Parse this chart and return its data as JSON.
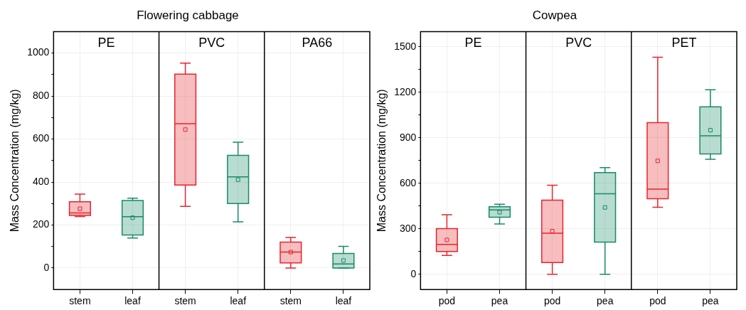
{
  "chart_data": [
    {
      "type": "box",
      "title": "Flowering cabbage",
      "ylabel": "Mass Concentration (mg/kg)",
      "categories": [
        "stem",
        "leaf",
        "stem",
        "leaf",
        "stem",
        "leaf"
      ],
      "annotations": [
        "PE",
        "PVC",
        "PA66"
      ],
      "colors": [
        "#e8242c",
        "#178a68",
        "#e8242c",
        "#178a68",
        "#e8242c",
        "#178a68"
      ],
      "boxes": [
        {
          "low": 240,
          "q1": 245,
          "median": 256,
          "q3": 308,
          "high": 344,
          "mean": 276
        },
        {
          "low": 140,
          "q1": 154,
          "median": 239,
          "q3": 314,
          "high": 325,
          "mean": 234
        },
        {
          "low": 287,
          "q1": 386,
          "median": 671,
          "q3": 902,
          "high": 953,
          "mean": 644
        },
        {
          "low": 215,
          "q1": 300,
          "median": 424,
          "q3": 524,
          "high": 585,
          "mean": 411
        },
        {
          "low": 0,
          "q1": 24,
          "median": 74,
          "q3": 121,
          "high": 142,
          "mean": 74
        },
        {
          "low": 0,
          "q1": 0,
          "median": 19,
          "q3": 68,
          "high": 101,
          "mean": 35
        }
      ],
      "ylim": [
        -100,
        1100
      ],
      "yticks": [
        0,
        {
          "value": 100,
          "label": null
        },
        200,
        {
          "value": 300,
          "label": null
        },
        400,
        {
          "value": 500,
          "label": null
        },
        600,
        {
          "value": 700,
          "label": null
        },
        800,
        {
          "value": 900,
          "label": null
        },
        1000
      ],
      "grid": true
    },
    {
      "type": "box",
      "title": "Cowpea",
      "ylabel": "Mass Concentration (mg/kg)",
      "categories": [
        "pod",
        "pea",
        "pod",
        "pea",
        "pod",
        "pea"
      ],
      "annotations": [
        "PE",
        "PVC",
        "PET"
      ],
      "colors": [
        "#e8242c",
        "#178a68",
        "#e8242c",
        "#178a68",
        "#e8242c",
        "#178a68"
      ],
      "boxes": [
        {
          "low": 125,
          "q1": 150,
          "median": 197,
          "q3": 301,
          "high": 393,
          "mean": 227
        },
        {
          "low": 332,
          "q1": 376,
          "median": 424,
          "q3": 446,
          "high": 462,
          "mean": 409
        },
        {
          "low": 0,
          "q1": 78,
          "median": 271,
          "q3": 489,
          "high": 587,
          "mean": 285
        },
        {
          "low": 0,
          "q1": 213,
          "median": 531,
          "q3": 670,
          "high": 703,
          "mean": 441
        },
        {
          "low": 442,
          "q1": 498,
          "median": 562,
          "q3": 1000,
          "high": 1431,
          "mean": 748
        },
        {
          "low": 758,
          "q1": 794,
          "median": 913,
          "q3": 1104,
          "high": 1217,
          "mean": 950
        }
      ],
      "ylim": [
        -100,
        1600
      ],
      "yticks": [
        0,
        {
          "value": 150,
          "label": null
        },
        300,
        {
          "value": 450,
          "label": null
        },
        600,
        {
          "value": 750,
          "label": null
        },
        900,
        {
          "value": 1050,
          "label": null
        },
        1200,
        {
          "value": 1350,
          "label": null
        },
        1500
      ],
      "grid": true
    }
  ]
}
